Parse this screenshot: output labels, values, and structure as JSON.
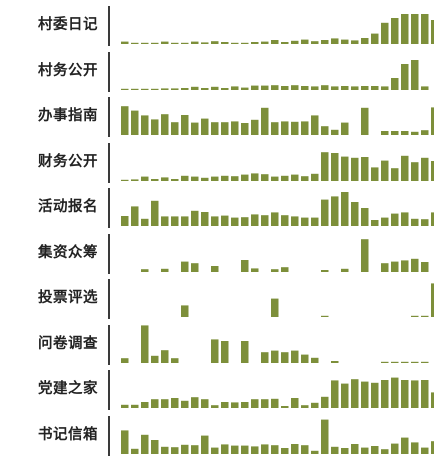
{
  "chart_data": {
    "type": "bar",
    "layout": "small-multiples",
    "bar_color": "#7d8f3a",
    "axis_color": "#3a3a3a",
    "y_max": 10,
    "rows": [
      {
        "label": "村委日记",
        "values": [
          0.6,
          0.3,
          0.2,
          0.3,
          0.6,
          0.2,
          0.3,
          0.6,
          0.4,
          0.7,
          0.5,
          0.3,
          0.2,
          0.5,
          0.6,
          1,
          0.5,
          0.8,
          1.1,
          0.7,
          1,
          1.4,
          1.1,
          0.9,
          1.5,
          2.6,
          5.3,
          6.5,
          7.5,
          7.5,
          7.5,
          6
        ]
      },
      {
        "label": "村务公开",
        "values": [
          0.2,
          0.2,
          0.2,
          0.3,
          0.4,
          0.4,
          0.5,
          0.8,
          0.5,
          0.8,
          0.5,
          0.9,
          0.6,
          1.1,
          1.1,
          1.2,
          1,
          1.2,
          1,
          0.9,
          1.2,
          0.9,
          1,
          0.9,
          1,
          1,
          0.9,
          3,
          6.5,
          7.5,
          0.9,
          0
        ]
      },
      {
        "label": "办事指南",
        "values": [
          7.2,
          6.1,
          4.9,
          3.9,
          5.2,
          3.2,
          5,
          3.1,
          4.1,
          3.2,
          3.2,
          3.4,
          3,
          3.8,
          6.8,
          3.2,
          3.4,
          3.3,
          3.4,
          4.9,
          2.2,
          1.3,
          3.1,
          0,
          6.8,
          0,
          1,
          1,
          1,
          0.8,
          1.2,
          6.9
        ]
      },
      {
        "label": "财务公开",
        "values": [
          0.2,
          0.4,
          1.1,
          0.5,
          0.9,
          0.5,
          1.3,
          1.1,
          0.8,
          1.1,
          1.3,
          1.2,
          1.6,
          1.9,
          1.7,
          1.1,
          1.3,
          1.6,
          1.2,
          1.8,
          7.2,
          7,
          6.1,
          5.8,
          6,
          3.4,
          5.1,
          3.2,
          6.3,
          4.7,
          5.8,
          5
        ]
      },
      {
        "label": "活动报名",
        "values": [
          2.5,
          4.9,
          1.8,
          6.3,
          2.4,
          2.4,
          2.4,
          3.8,
          3.5,
          2.4,
          2.6,
          2.1,
          2.2,
          2.9,
          2.7,
          3.4,
          2.7,
          2.4,
          2.1,
          2.1,
          6.6,
          7.4,
          8.5,
          6,
          4.5,
          1.5,
          2.1,
          3.1,
          3.4,
          1.8,
          1.7,
          3.4
        ]
      },
      {
        "label": "集资众筹",
        "values": [
          0,
          0,
          0.7,
          0,
          0.8,
          0,
          2.6,
          2.2,
          0,
          1.5,
          0,
          0,
          3,
          0.9,
          0,
          0.7,
          1.2,
          0,
          0,
          0,
          0.5,
          0,
          0.8,
          0,
          8.2,
          0,
          2.2,
          2.6,
          2.9,
          3.3,
          2.5,
          0
        ]
      },
      {
        "label": "投票评选",
        "values": [
          0,
          0,
          0,
          0,
          0,
          0,
          2.9,
          0,
          0,
          0,
          0,
          0,
          0,
          0,
          0,
          4.6,
          0,
          0,
          0,
          0,
          0.2,
          0,
          0,
          0,
          0,
          0,
          0,
          0,
          0,
          0.2,
          0.2,
          8.4
        ]
      },
      {
        "label": "问卷调查",
        "values": [
          1.2,
          0,
          9.4,
          1.8,
          3.2,
          1.2,
          0,
          0,
          0,
          5.9,
          5.5,
          0,
          5.5,
          0,
          2.7,
          3.1,
          2.7,
          3.1,
          2.1,
          1.3,
          0,
          0.5,
          0,
          0,
          0,
          0,
          0.2,
          0.2,
          0.2,
          0.2,
          0.2,
          0
        ]
      },
      {
        "label": "党建之家",
        "values": [
          0.8,
          0.8,
          1.5,
          2.2,
          2.2,
          2.5,
          1.8,
          2.7,
          2.2,
          0.7,
          1.5,
          1.4,
          1.5,
          2.2,
          2.2,
          2.3,
          0.5,
          2.5,
          0.7,
          1.3,
          2.8,
          6.9,
          6.1,
          7.2,
          6.6,
          6.3,
          7,
          7.6,
          7,
          6.9,
          7,
          3.9
        ]
      },
      {
        "label": "书记信箱",
        "values": [
          5.9,
          1.3,
          4.8,
          3.5,
          1.8,
          1.7,
          2.3,
          2.2,
          4.6,
          1.6,
          2.4,
          2.1,
          2.1,
          1.9,
          2.4,
          2.2,
          1.5,
          2.5,
          2.2,
          0.8,
          8.6,
          1.8,
          1.5,
          2.5,
          1.6,
          2,
          1.2,
          2.6,
          4.1,
          2.9,
          1.6,
          3.2
        ]
      }
    ]
  }
}
